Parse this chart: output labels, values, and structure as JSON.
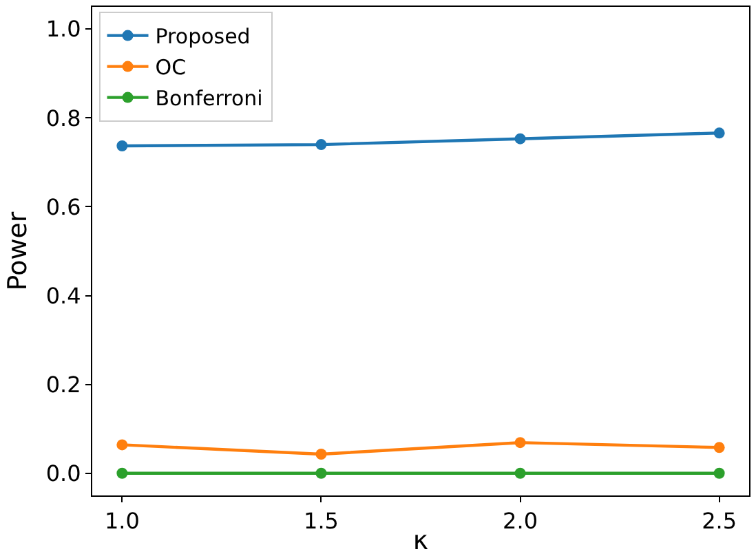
{
  "chart_data": {
    "type": "line",
    "xlabel": "κ",
    "ylabel": "Power",
    "x": [
      1.0,
      1.5,
      2.0,
      2.5
    ],
    "xlim": [
      0.925,
      2.575
    ],
    "xticks": [
      {
        "value": 1,
        "label": "1.0"
      },
      {
        "value": 1.5,
        "label": "1.5"
      },
      {
        "value": 2,
        "label": "2.0"
      },
      {
        "value": 2.5,
        "label": "2.5"
      }
    ],
    "ylim": [
      -0.05,
      1.05
    ],
    "yticks": [
      {
        "value": 0,
        "label": "0.0"
      },
      {
        "value": 0.2,
        "label": "0.2"
      },
      {
        "value": 0.4,
        "label": "0.4"
      },
      {
        "value": 0.6,
        "label": "0.6"
      },
      {
        "value": 0.8,
        "label": "0.8"
      },
      {
        "value": 1,
        "label": "1.0"
      }
    ],
    "series": [
      {
        "name": "Proposed",
        "color": "#1f77b4",
        "values": [
          0.737,
          0.74,
          0.753,
          0.766
        ]
      },
      {
        "name": "OC",
        "color": "#ff7f0e",
        "values": [
          0.064,
          0.043,
          0.069,
          0.058
        ]
      },
      {
        "name": "Bonferroni",
        "color": "#2ca02c",
        "values": [
          0,
          0,
          0,
          0
        ]
      }
    ],
    "legend": "top left",
    "marker": "circle",
    "line_style": "solid",
    "grid": false
  }
}
